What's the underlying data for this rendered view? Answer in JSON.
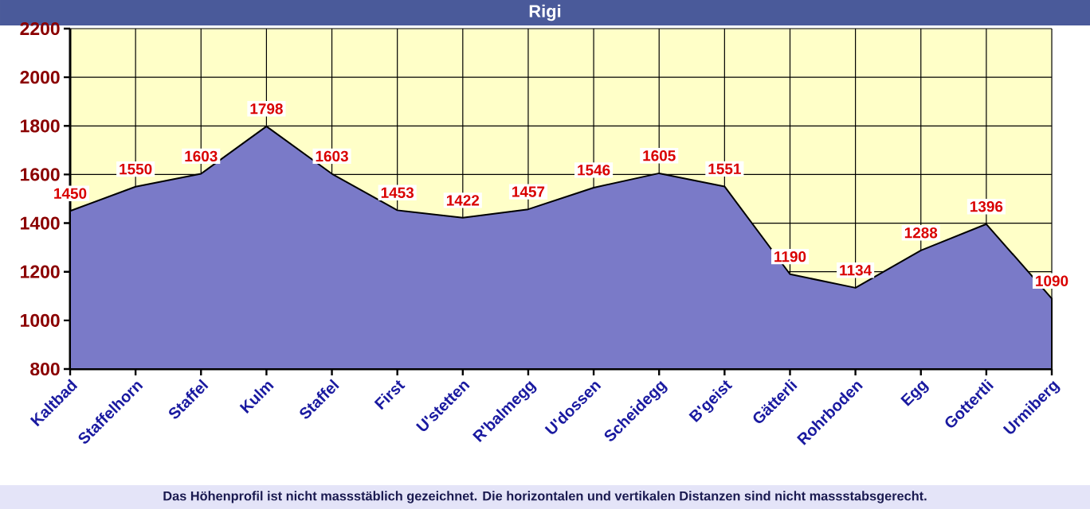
{
  "chart_data": {
    "type": "area",
    "title": "Rigi",
    "categories": [
      "Kaltbad",
      "Staffelhorn",
      "Staffel",
      "Kulm",
      "Staffel",
      "First",
      "U'stetten",
      "R'balmegg",
      "U'dossen",
      "Scheidegg",
      "B'geist",
      "Gätterli",
      "Rohrboden",
      "Egg",
      "Gottertli",
      "Urmiberg"
    ],
    "values": [
      1450,
      1550,
      1603,
      1798,
      1603,
      1453,
      1422,
      1457,
      1546,
      1605,
      1551,
      1190,
      1134,
      1288,
      1396,
      1090
    ],
    "color": "#7a7ac8",
    "ylim": [
      800,
      2200
    ],
    "yticks": [
      800,
      1000,
      1200,
      1400,
      1600,
      1800,
      2000,
      2200
    ],
    "grid": true,
    "data_labels": true,
    "annotations": [
      "Das Höhenprofil ist nicht massstäblich gezeichnet. Die horizontalen und vertikalen Distanzen sind nicht massstabsgerecht."
    ]
  }
}
